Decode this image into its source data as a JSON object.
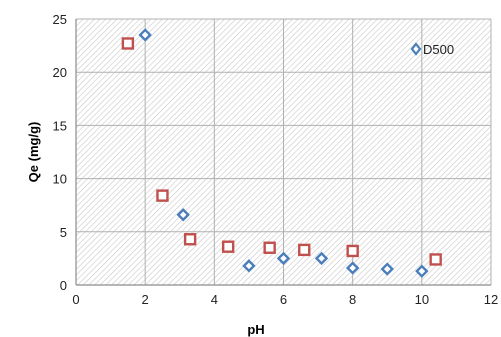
{
  "chart_data": {
    "type": "scatter",
    "title": "",
    "xlabel": "pH",
    "ylabel": "Qe (mg/g)",
    "xlim": [
      0,
      12
    ],
    "ylim": [
      0,
      25
    ],
    "xticks": [
      0,
      2,
      4,
      6,
      8,
      10,
      12
    ],
    "yticks": [
      0,
      5,
      10,
      15,
      20,
      25
    ],
    "grid": "vertical and horizontal major gridlines, hatched plot background",
    "legend_position": "top-right",
    "series": [
      {
        "name": "D500",
        "marker": "diamond",
        "color": "#4a7ebb",
        "points": [
          [
            2.0,
            23.5
          ],
          [
            3.1,
            6.6
          ],
          [
            5.0,
            1.8
          ],
          [
            6.0,
            2.5
          ],
          [
            7.1,
            2.5
          ],
          [
            8.0,
            1.6
          ],
          [
            9.0,
            1.5
          ],
          [
            10.0,
            1.3
          ]
        ]
      },
      {
        "marker": "square",
        "color": "#c0504d",
        "points": [
          [
            1.5,
            22.7
          ],
          [
            2.5,
            8.4
          ],
          [
            3.3,
            4.3
          ],
          [
            4.4,
            3.6
          ],
          [
            5.6,
            3.5
          ],
          [
            6.6,
            3.3
          ],
          [
            8.0,
            3.2
          ],
          [
            10.4,
            2.4
          ]
        ]
      }
    ]
  }
}
